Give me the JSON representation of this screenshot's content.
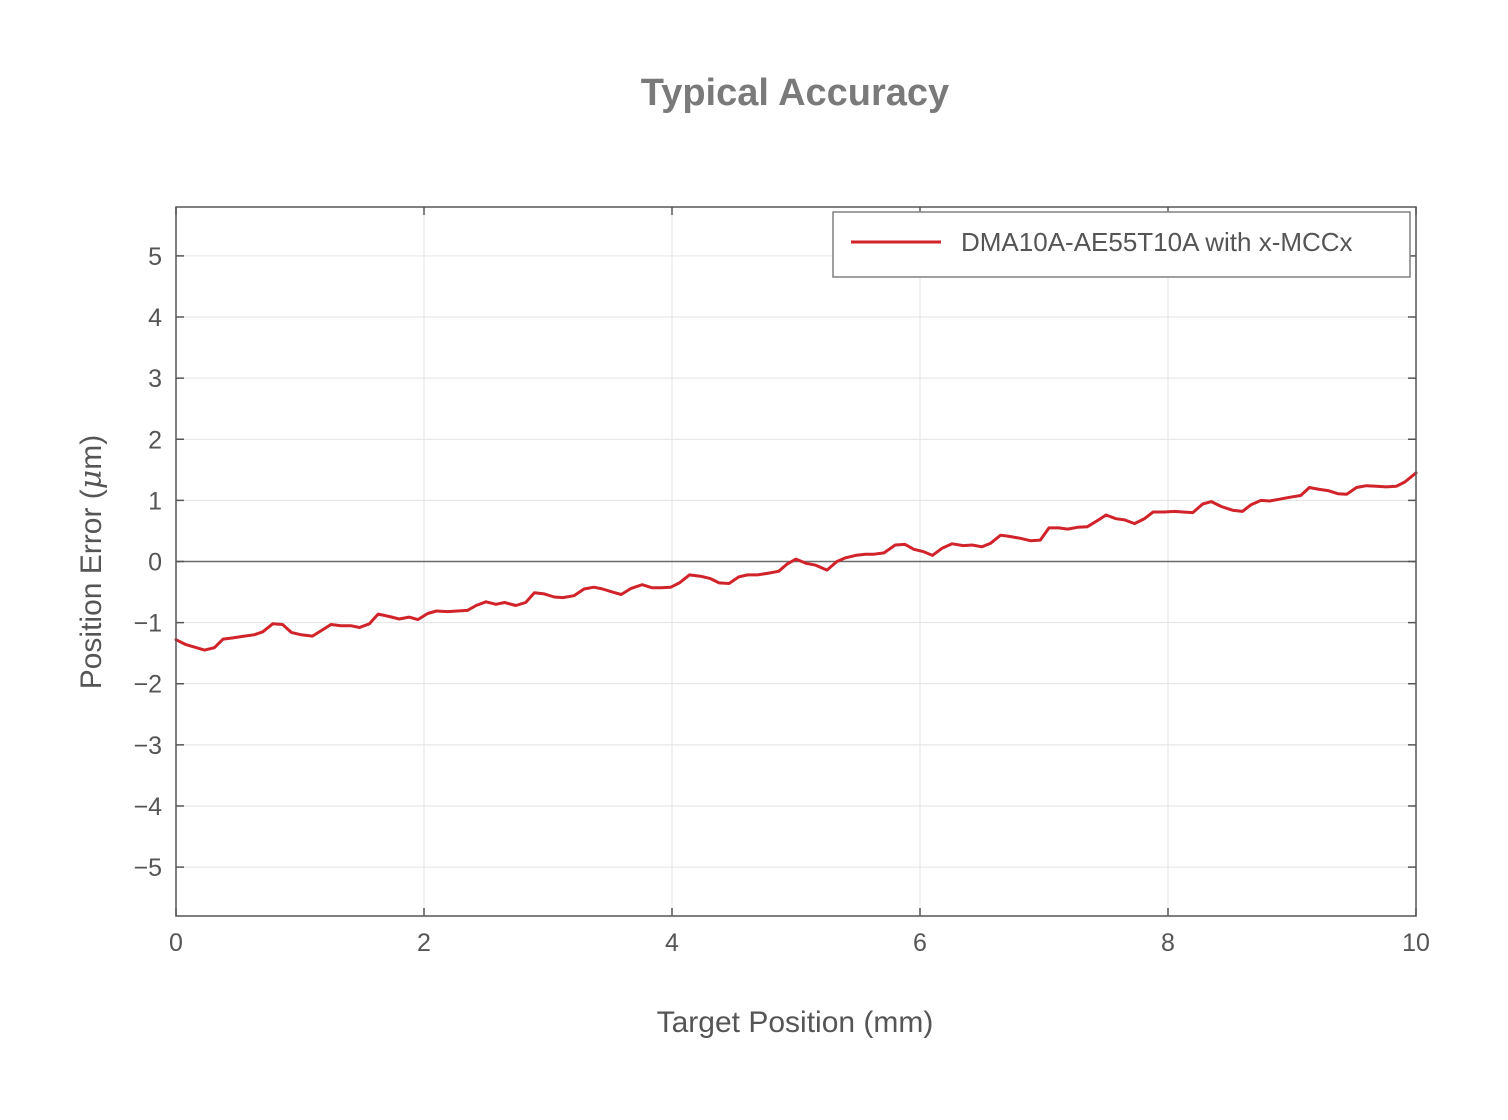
{
  "chart_data": {
    "type": "line",
    "title": "Typical Accuracy",
    "xlabel": "Target Position (mm)",
    "ylabel": "Position Error (μm)",
    "ylabel_parts": {
      "prefix": "Position Error (",
      "mu": "μ",
      "suffix": "m)"
    },
    "xlim": [
      0,
      10
    ],
    "ylim": [
      -5.8,
      5.8
    ],
    "xticks": [
      0,
      2,
      4,
      6,
      8,
      10
    ],
    "xtick_labels": [
      "0",
      "2",
      "4",
      "6",
      "8",
      "10"
    ],
    "yticks": [
      -5,
      -4,
      -3,
      -2,
      -1,
      0,
      1,
      2,
      3,
      4,
      5
    ],
    "ytick_labels": [
      "−5",
      "−4",
      "−3",
      "−2",
      "−1",
      "0",
      "1",
      "2",
      "3",
      "4",
      "5"
    ],
    "grid": true,
    "zero_line": true,
    "legend_position": "top-right",
    "series": [
      {
        "name": "DMA10A-AE55T10A with x-MCCx",
        "color": "#d0232a",
        "x": [
          0,
          0.08,
          0.23,
          0.31,
          0.38,
          0.46,
          0.55,
          0.63,
          0.7,
          0.78,
          0.86,
          0.93,
          1.01,
          1.1,
          1.18,
          1.25,
          1.33,
          1.41,
          1.48,
          1.56,
          1.63,
          1.72,
          1.8,
          1.88,
          1.95,
          2.03,
          2.1,
          2.19,
          2.27,
          2.35,
          2.42,
          2.5,
          2.58,
          2.65,
          2.74,
          2.82,
          2.89,
          2.97,
          3.05,
          3.12,
          3.21,
          3.29,
          3.37,
          3.44,
          3.52,
          3.59,
          3.67,
          3.76,
          3.84,
          3.91,
          3.99,
          4.06,
          4.14,
          4.23,
          4.31,
          4.38,
          4.46,
          4.54,
          4.61,
          4.69,
          4.78,
          4.86,
          4.93,
          5.0,
          5.08,
          5.16,
          5.25,
          5.33,
          5.4,
          5.48,
          5.56,
          5.63,
          5.71,
          5.8,
          5.88,
          5.95,
          6.03,
          6.1,
          6.18,
          6.26,
          6.35,
          6.42,
          6.5,
          6.57,
          6.65,
          6.72,
          6.81,
          6.89,
          6.97,
          7.04,
          7.12,
          7.19,
          7.27,
          7.35,
          7.44,
          7.5,
          7.58,
          7.65,
          7.73,
          7.81,
          7.88,
          7.97,
          8.05,
          8.12,
          8.2,
          8.28,
          8.35,
          8.43,
          8.52,
          8.6,
          8.67,
          8.75,
          8.82,
          8.9,
          8.98,
          9.07,
          9.14,
          9.22,
          9.29,
          9.37,
          9.44,
          9.52,
          9.6,
          9.68,
          9.76,
          9.84,
          9.91,
          10.0
        ],
        "y": [
          -1.28,
          -1.36,
          -1.45,
          -1.41,
          -1.27,
          -1.25,
          -1.22,
          -1.2,
          -1.15,
          -1.02,
          -1.03,
          -1.16,
          -1.2,
          -1.22,
          -1.12,
          -1.03,
          -1.05,
          -1.05,
          -1.08,
          -1.02,
          -0.86,
          -0.9,
          -0.94,
          -0.91,
          -0.95,
          -0.85,
          -0.81,
          -0.82,
          -0.81,
          -0.8,
          -0.72,
          -0.66,
          -0.7,
          -0.67,
          -0.72,
          -0.67,
          -0.51,
          -0.53,
          -0.58,
          -0.59,
          -0.56,
          -0.45,
          -0.42,
          -0.45,
          -0.5,
          -0.54,
          -0.44,
          -0.38,
          -0.43,
          -0.43,
          -0.42,
          -0.35,
          -0.22,
          -0.24,
          -0.28,
          -0.35,
          -0.36,
          -0.25,
          -0.22,
          -0.22,
          -0.19,
          -0.16,
          -0.04,
          0.04,
          -0.03,
          -0.06,
          -0.14,
          0.0,
          0.06,
          0.1,
          0.12,
          0.12,
          0.14,
          0.27,
          0.28,
          0.2,
          0.16,
          0.1,
          0.22,
          0.29,
          0.26,
          0.27,
          0.24,
          0.3,
          0.43,
          0.41,
          0.38,
          0.34,
          0.35,
          0.55,
          0.55,
          0.53,
          0.56,
          0.57,
          0.68,
          0.76,
          0.7,
          0.68,
          0.62,
          0.7,
          0.81,
          0.81,
          0.82,
          0.81,
          0.8,
          0.94,
          0.98,
          0.9,
          0.84,
          0.82,
          0.93,
          1.0,
          0.99,
          1.02,
          1.05,
          1.08,
          1.21,
          1.18,
          1.16,
          1.11,
          1.1,
          1.21,
          1.24,
          1.23,
          1.22,
          1.23,
          1.3,
          1.45
        ]
      }
    ]
  }
}
